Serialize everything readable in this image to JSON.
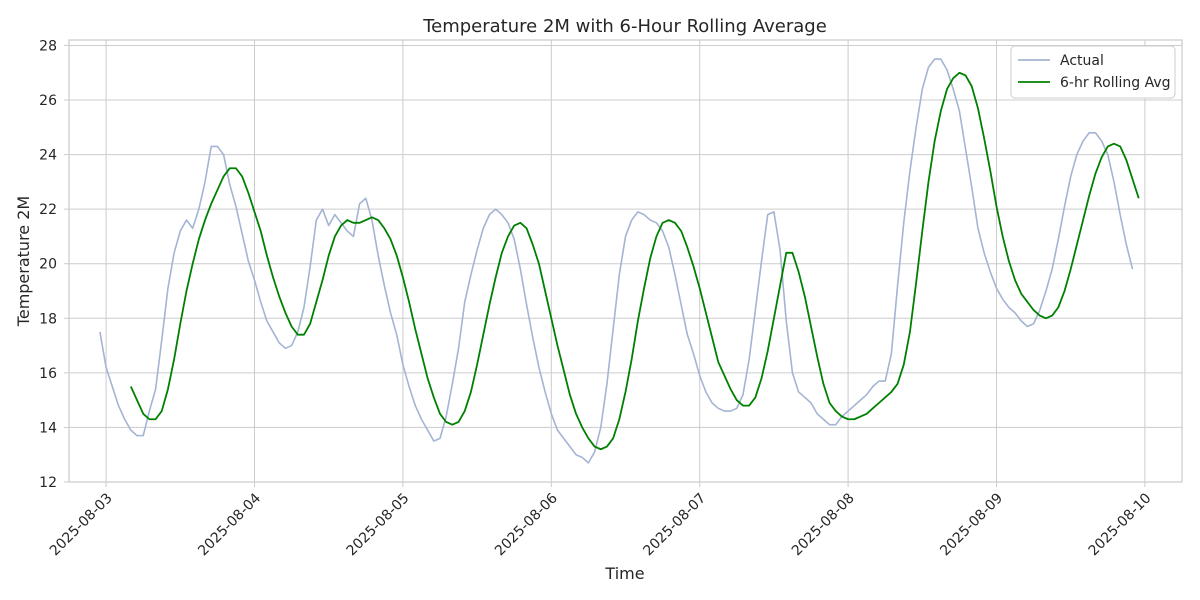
{
  "chart_data": {
    "type": "line",
    "title": "Temperature 2M with 6-Hour Rolling Average",
    "xlabel": "Time",
    "ylabel": "Temperature 2M",
    "x_ticks": [
      "2025-08-03",
      "2025-08-04",
      "2025-08-05",
      "2025-08-06",
      "2025-08-07",
      "2025-08-08",
      "2025-08-09",
      "2025-08-10"
    ],
    "y_ticks": [
      12,
      14,
      16,
      18,
      20,
      22,
      24,
      26,
      28
    ],
    "ylim": [
      12,
      28.2
    ],
    "xlim": [
      "2025-08-02 18:00",
      "2025-08-10 06:00"
    ],
    "grid": true,
    "legend_position": "top-right",
    "colors": {
      "actual": "#a4b4d2",
      "rolling": "#008000",
      "grid": "#cccccc"
    },
    "series": [
      {
        "name": "Actual",
        "sampling": "hourly",
        "start": "2025-08-02 23:00",
        "values": [
          17.5,
          16.2,
          15.5,
          14.8,
          14.3,
          13.9,
          13.7,
          13.7,
          14.6,
          15.4,
          17.2,
          19.1,
          20.4,
          21.2,
          21.6,
          21.3,
          22.0,
          23.0,
          24.3,
          24.3,
          24.0,
          22.9,
          22.1,
          21.1,
          20.1,
          19.4,
          18.6,
          17.9,
          17.5,
          17.1,
          16.9,
          17.0,
          17.5,
          18.4,
          19.9,
          21.6,
          22.0,
          21.4,
          21.8,
          21.5,
          21.2,
          21.0,
          22.2,
          22.4,
          21.6,
          20.3,
          19.2,
          18.2,
          17.4,
          16.3,
          15.5,
          14.8,
          14.3,
          13.9,
          13.5,
          13.6,
          14.4,
          15.6,
          16.9,
          18.6,
          19.6,
          20.5,
          21.3,
          21.8,
          22.0,
          21.8,
          21.5,
          20.9,
          19.8,
          18.5,
          17.3,
          16.2,
          15.3,
          14.5,
          13.9,
          13.6,
          13.3,
          13.0,
          12.9,
          12.7,
          13.1,
          14.0,
          15.6,
          17.6,
          19.6,
          21.0,
          21.6,
          21.9,
          21.8,
          21.6,
          21.5,
          21.2,
          20.6,
          19.6,
          18.5,
          17.4,
          16.7,
          15.9,
          15.3,
          14.9,
          14.7,
          14.6,
          14.6,
          14.7,
          15.2,
          16.5,
          18.3,
          20.1,
          21.8,
          21.9,
          20.5,
          17.9,
          16.0,
          15.3,
          15.1,
          14.9,
          14.5,
          14.3,
          14.1,
          14.1,
          14.4,
          14.6,
          14.8,
          15.0,
          15.2,
          15.5,
          15.7,
          15.7,
          16.7,
          19.2,
          21.5,
          23.4,
          25.0,
          26.4,
          27.2,
          27.5,
          27.5,
          27.1,
          26.4,
          25.6,
          24.2,
          22.8,
          21.3,
          20.4,
          19.7,
          19.1,
          18.7,
          18.4,
          18.2,
          17.9,
          17.7,
          17.8,
          18.3,
          19.0,
          19.8,
          20.9,
          22.1,
          23.2,
          24.0,
          24.5,
          24.8,
          24.8,
          24.5,
          24.0,
          23.0,
          21.8,
          20.7,
          19.8
        ]
      },
      {
        "name": "6-hr Rolling Avg",
        "sampling": "hourly",
        "start": "2025-08-03 04:00",
        "values": [
          15.5,
          15.0,
          14.5,
          14.3,
          14.3,
          14.6,
          15.4,
          16.5,
          17.8,
          19.0,
          20.0,
          20.9,
          21.6,
          22.2,
          22.7,
          23.2,
          23.5,
          23.5,
          23.2,
          22.6,
          21.9,
          21.2,
          20.3,
          19.5,
          18.8,
          18.2,
          17.7,
          17.4,
          17.4,
          17.8,
          18.6,
          19.4,
          20.3,
          21.0,
          21.4,
          21.6,
          21.5,
          21.5,
          21.6,
          21.7,
          21.6,
          21.3,
          20.9,
          20.3,
          19.5,
          18.6,
          17.6,
          16.7,
          15.8,
          15.1,
          14.5,
          14.2,
          14.1,
          14.2,
          14.6,
          15.3,
          16.3,
          17.4,
          18.5,
          19.5,
          20.4,
          21.0,
          21.4,
          21.5,
          21.3,
          20.7,
          20.0,
          19.0,
          18.0,
          17.0,
          16.1,
          15.2,
          14.5,
          14.0,
          13.6,
          13.3,
          13.2,
          13.3,
          13.6,
          14.3,
          15.3,
          16.5,
          17.9,
          19.1,
          20.2,
          21.0,
          21.5,
          21.6,
          21.5,
          21.2,
          20.6,
          19.9,
          19.1,
          18.2,
          17.3,
          16.4,
          15.9,
          15.4,
          15.0,
          14.8,
          14.8,
          15.1,
          15.8,
          16.8,
          18.0,
          19.2,
          20.4,
          20.4,
          19.7,
          18.8,
          17.7,
          16.6,
          15.6,
          14.9,
          14.6,
          14.4,
          14.3,
          14.3,
          14.4,
          14.5,
          14.7,
          14.9,
          15.1,
          15.3,
          15.6,
          16.3,
          17.5,
          19.3,
          21.2,
          23.0,
          24.5,
          25.6,
          26.4,
          26.8,
          27.0,
          26.9,
          26.5,
          25.7,
          24.6,
          23.4,
          22.1,
          21.0,
          20.1,
          19.4,
          18.9,
          18.6,
          18.3,
          18.1,
          18.0,
          18.1,
          18.4,
          19.0,
          19.8,
          20.7,
          21.6,
          22.5,
          23.3,
          23.9,
          24.3,
          24.4,
          24.3,
          23.8,
          23.1,
          22.4
        ]
      }
    ]
  }
}
